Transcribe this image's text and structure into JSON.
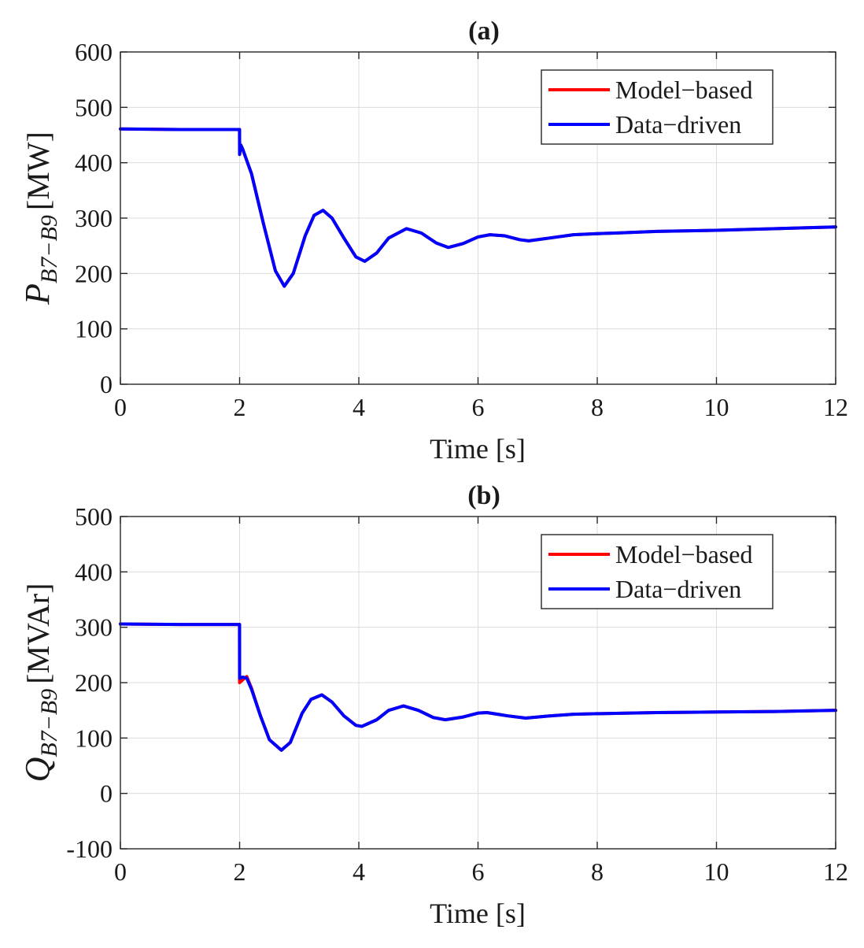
{
  "chart_data": [
    {
      "type": "line",
      "title": "(a)",
      "xlabel": "Time [s]",
      "ylabel": {
        "main": "P",
        "subscript": "B7−B9",
        "unit": "[MW]"
      },
      "xlim": [
        0,
        12
      ],
      "ylim": [
        0,
        600
      ],
      "xticks": [
        0,
        2,
        4,
        6,
        8,
        10,
        12
      ],
      "yticks": [
        0,
        100,
        200,
        300,
        400,
        500,
        600
      ],
      "grid": true,
      "legend_position": "top-right",
      "series": [
        {
          "name": "Model−based",
          "color": "#ff0000",
          "x": [
            0,
            1.0,
            1.999,
            2.0,
            2.02,
            2.05,
            2.2,
            2.4,
            2.6,
            2.75,
            2.9,
            3.1,
            3.25,
            3.4,
            3.55,
            3.75,
            3.95,
            4.1,
            4.3,
            4.5,
            4.8,
            5.05,
            5.3,
            5.5,
            5.75,
            6.0,
            6.2,
            6.45,
            6.7,
            6.85,
            7.2,
            7.6,
            8.0,
            8.3,
            9.0,
            10.0,
            11.0,
            12.0
          ],
          "y": [
            461,
            460,
            460,
            415,
            432,
            425,
            380,
            290,
            205,
            177,
            200,
            268,
            305,
            314,
            300,
            264,
            230,
            222,
            237,
            264,
            281,
            273,
            255,
            247,
            254,
            266,
            270,
            268,
            261,
            259,
            264,
            270,
            272,
            273,
            276,
            278,
            281,
            284
          ]
        },
        {
          "name": "Data−driven",
          "color": "#0000ff",
          "x": [
            0,
            1.0,
            1.999,
            2.0,
            2.02,
            2.05,
            2.2,
            2.4,
            2.6,
            2.75,
            2.9,
            3.1,
            3.25,
            3.4,
            3.55,
            3.75,
            3.95,
            4.1,
            4.3,
            4.5,
            4.8,
            5.05,
            5.3,
            5.5,
            5.75,
            6.0,
            6.2,
            6.45,
            6.7,
            6.85,
            7.2,
            7.6,
            8.0,
            8.3,
            9.0,
            10.0,
            11.0,
            12.0
          ],
          "y": [
            461,
            460,
            460,
            415,
            432,
            425,
            380,
            290,
            205,
            177,
            200,
            268,
            305,
            314,
            300,
            264,
            230,
            222,
            237,
            264,
            281,
            273,
            255,
            247,
            254,
            266,
            270,
            268,
            261,
            259,
            264,
            270,
            272,
            273,
            276,
            278,
            281,
            284
          ]
        }
      ]
    },
    {
      "type": "line",
      "title": "(b)",
      "xlabel": "Time [s]",
      "ylabel": {
        "main": "Q",
        "subscript": "B7−B9",
        "unit": "[MVAr]"
      },
      "xlim": [
        0,
        12
      ],
      "ylim": [
        -100,
        500
      ],
      "xticks": [
        0,
        2,
        4,
        6,
        8,
        10,
        12
      ],
      "yticks": [
        -100,
        0,
        100,
        200,
        300,
        400,
        500
      ],
      "grid": true,
      "legend_position": "top-right",
      "series": [
        {
          "name": "Model−based",
          "color": "#ff0000",
          "x": [
            0,
            1.0,
            1.999,
            2.0,
            2.05,
            2.12,
            2.2,
            2.35,
            2.5,
            2.7,
            2.85,
            3.05,
            3.2,
            3.38,
            3.55,
            3.75,
            3.95,
            4.05,
            4.3,
            4.5,
            4.75,
            5.0,
            5.25,
            5.45,
            5.75,
            6.0,
            6.15,
            6.5,
            6.8,
            7.2,
            7.6,
            8.0,
            9.0,
            10.0,
            11.0,
            12.0
          ],
          "y": [
            306,
            305,
            305,
            200,
            205,
            211,
            190,
            140,
            97,
            78,
            92,
            145,
            170,
            178,
            165,
            140,
            123,
            121,
            133,
            150,
            158,
            150,
            137,
            133,
            138,
            145,
            146,
            140,
            136,
            140,
            143,
            144,
            146,
            147,
            148,
            150
          ]
        },
        {
          "name": "Data−driven",
          "color": "#0000ff",
          "x": [
            0,
            1.0,
            1.999,
            2.0,
            2.05,
            2.12,
            2.2,
            2.35,
            2.5,
            2.7,
            2.85,
            3.05,
            3.2,
            3.38,
            3.55,
            3.75,
            3.95,
            4.05,
            4.3,
            4.5,
            4.75,
            5.0,
            5.25,
            5.45,
            5.75,
            6.0,
            6.15,
            6.5,
            6.8,
            7.2,
            7.6,
            8.0,
            9.0,
            10.0,
            11.0,
            12.0
          ],
          "y": [
            306,
            305,
            305,
            208,
            210,
            208,
            188,
            140,
            97,
            78,
            92,
            145,
            170,
            178,
            165,
            140,
            123,
            121,
            133,
            150,
            158,
            150,
            137,
            133,
            138,
            145,
            146,
            140,
            136,
            140,
            143,
            144,
            146,
            147,
            148,
            150
          ]
        }
      ]
    }
  ]
}
